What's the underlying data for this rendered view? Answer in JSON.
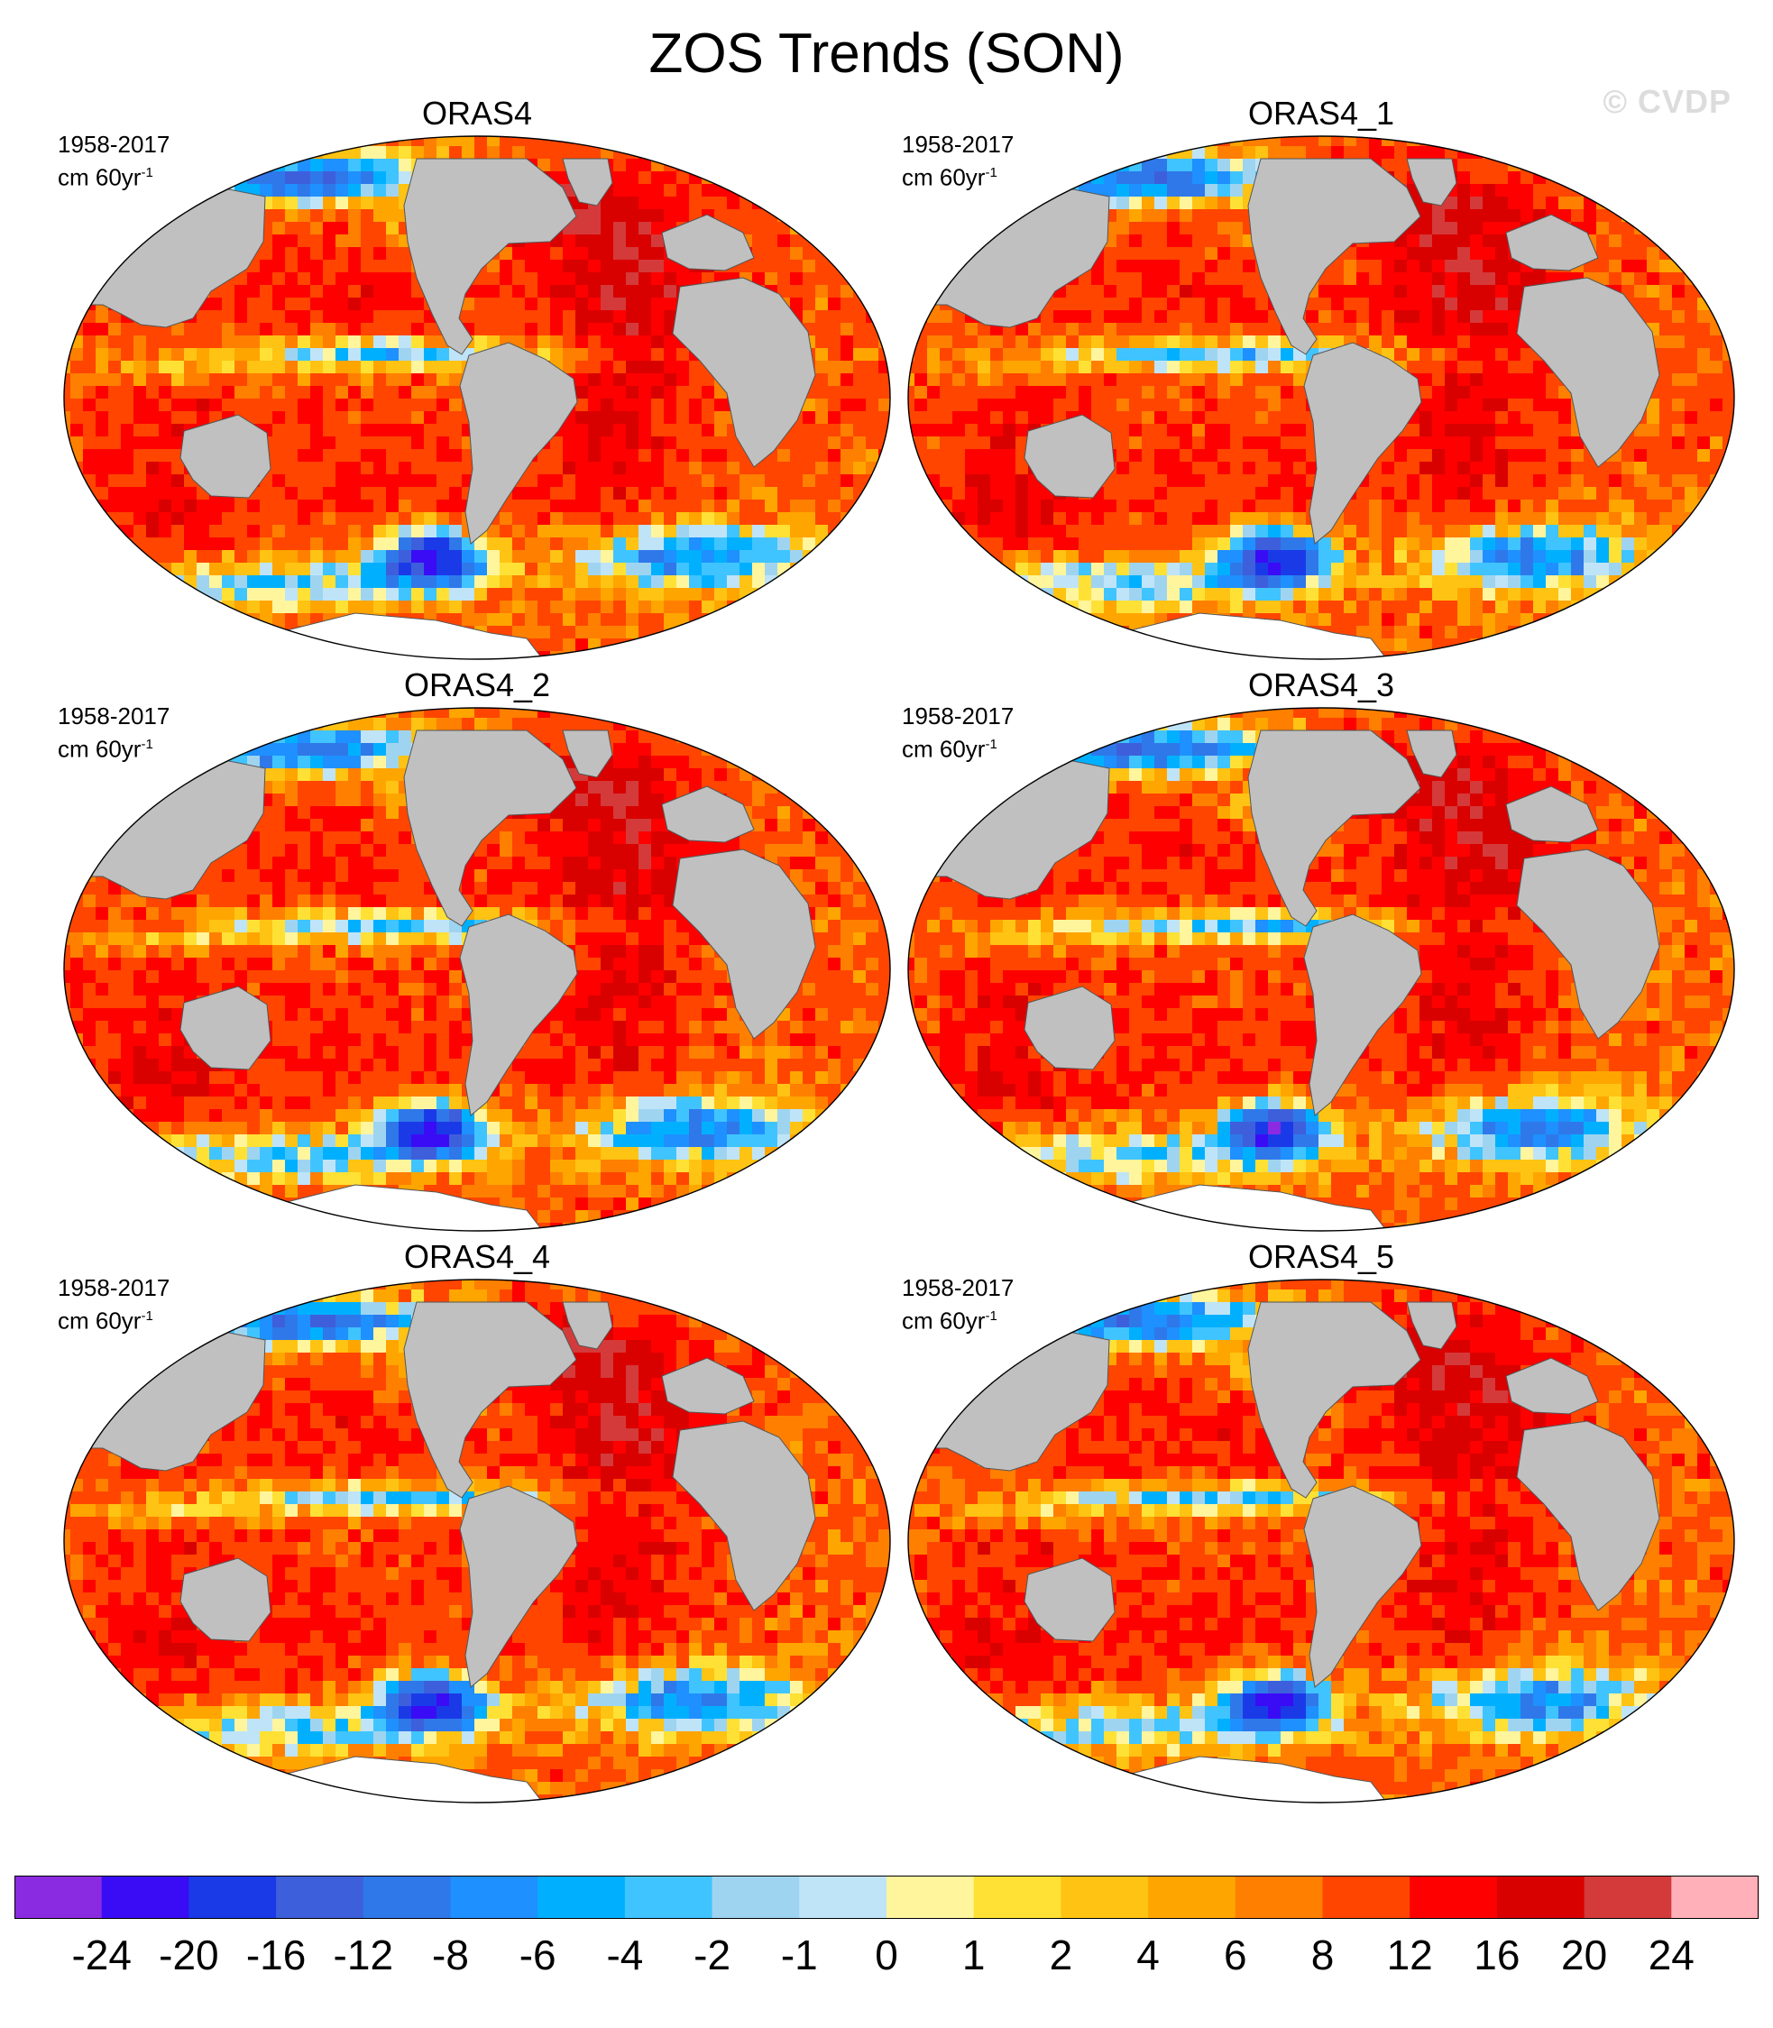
{
  "figure": {
    "title": "ZOS Trends (SON)",
    "watermark": "© CVDP"
  },
  "panels": [
    {
      "title": "ORAS4",
      "period": "1958-2017",
      "units": "cm 60yr",
      "units_exp": "-1"
    },
    {
      "title": "ORAS4_1",
      "period": "1958-2017",
      "units": "cm 60yr",
      "units_exp": "-1"
    },
    {
      "title": "ORAS4_2",
      "period": "1958-2017",
      "units": "cm 60yr",
      "units_exp": "-1"
    },
    {
      "title": "ORAS4_3",
      "period": "1958-2017",
      "units": "cm 60yr",
      "units_exp": "-1"
    },
    {
      "title": "ORAS4_4",
      "period": "1958-2017",
      "units": "cm 60yr",
      "units_exp": "-1"
    },
    {
      "title": "ORAS4_5",
      "period": "1958-2017",
      "units": "cm 60yr",
      "units_exp": "-1"
    }
  ],
  "map_style": {
    "land_color": "#c0c0c0",
    "antarctica_color": "#ffffff",
    "coast_color": "#555555",
    "projection": "Robinson"
  },
  "colorbar": {
    "labels": [
      "-24",
      "-20",
      "-16",
      "-12",
      "-8",
      "-6",
      "-4",
      "-2",
      "-1",
      "0",
      "1",
      "2",
      "4",
      "6",
      "8",
      "12",
      "16",
      "20",
      "24"
    ],
    "colors": [
      "#8a2be2",
      "#3a0cf5",
      "#1a3ae8",
      "#3e5fdc",
      "#2f78ea",
      "#1e90ff",
      "#00b0ff",
      "#40c4ff",
      "#9fd4f0",
      "#bfe4f8",
      "#fff59d",
      "#ffe135",
      "#ffc313",
      "#ffa500",
      "#ff7f00",
      "#ff4500",
      "#ff0000",
      "#d90000",
      "#d43a3a",
      "#ffb0b8"
    ]
  }
}
